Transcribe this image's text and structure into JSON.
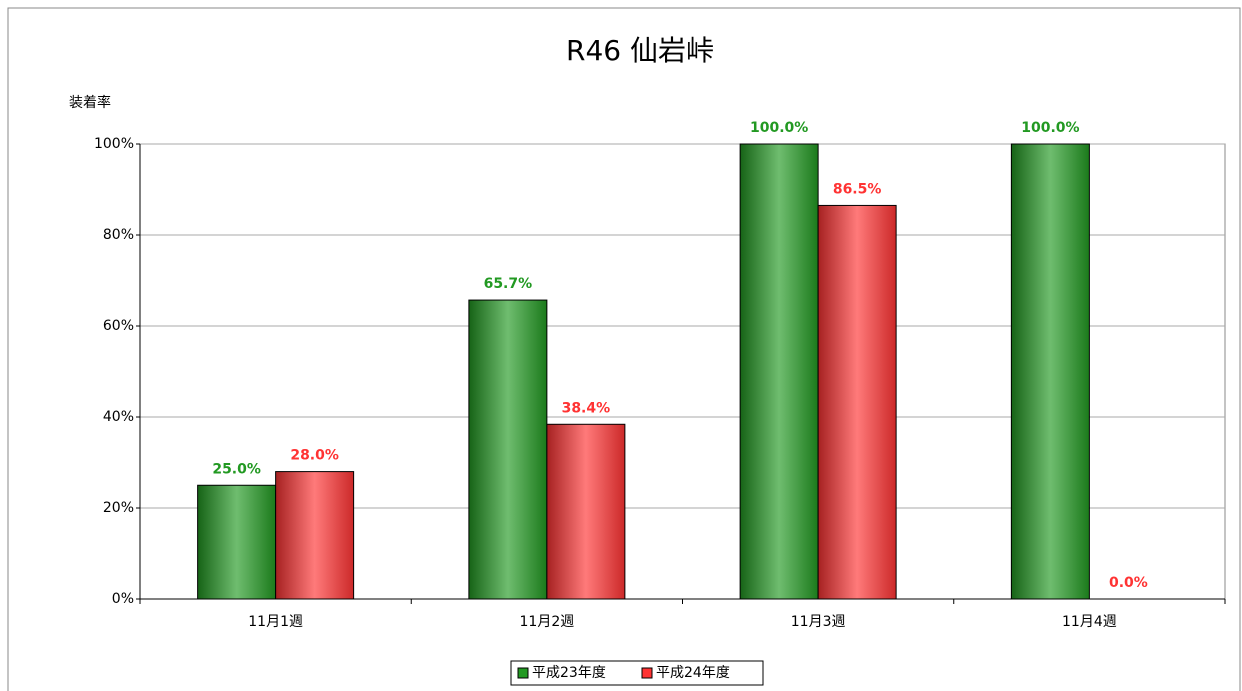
{
  "chart_data": {
    "type": "bar",
    "title": "R46 仙岩峠",
    "y_label": "装着率",
    "categories": [
      "11月1週",
      "11月2週",
      "11月3週",
      "11月4週"
    ],
    "series": [
      {
        "name": "平成23年度",
        "color": "#229922",
        "values": [
          25.0,
          65.7,
          100.0,
          100.0
        ],
        "value_labels": [
          "25.0%",
          "65.7%",
          "100.0%",
          "100.0%"
        ]
      },
      {
        "name": "平成24年度",
        "color": "#ff3333",
        "values": [
          28.0,
          38.4,
          86.5,
          0.0
        ],
        "value_labels": [
          "28.0%",
          "38.4%",
          "86.5%",
          "0.0%"
        ]
      }
    ],
    "ylim": [
      0,
      100
    ],
    "yticks": [
      {
        "value": 0,
        "label": "0%"
      },
      {
        "value": 20,
        "label": "20%"
      },
      {
        "value": 40,
        "label": "40%"
      },
      {
        "value": 60,
        "label": "60%"
      },
      {
        "value": 80,
        "label": "80%"
      },
      {
        "value": 100,
        "label": "100%"
      }
    ],
    "grid": true,
    "legend": "bottom"
  }
}
